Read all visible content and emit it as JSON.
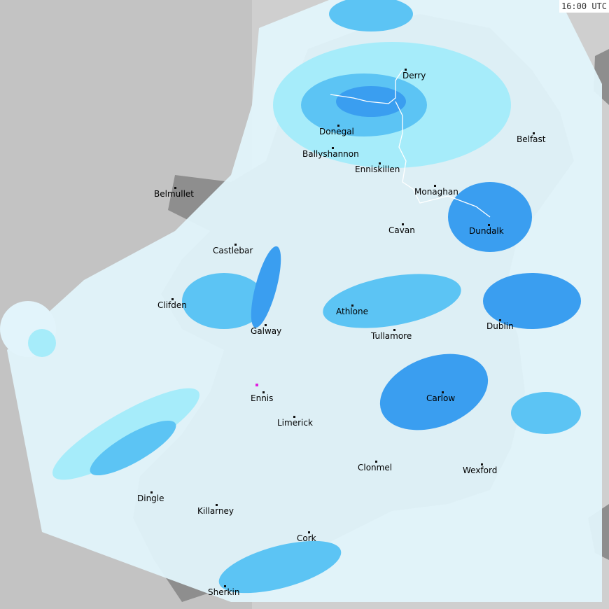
{
  "timestamp": "16:00 UTC",
  "colors": {
    "sea": "#c3c3c3",
    "land": "#8e8e8e",
    "rain_light": "#e2f4fb",
    "rain_cyan": "#a6ecfa",
    "rain_medium": "#5cc4f4",
    "rain_heavy": "#3a9ef0",
    "rain_intense": "#2c7de6",
    "border": "#ffffff",
    "coast": "#777777"
  },
  "cities": [
    {
      "name": "Derry"
    },
    {
      "name": "Donegal"
    },
    {
      "name": "Ballyshannon"
    },
    {
      "name": "Enniskillen"
    },
    {
      "name": "Belfast"
    },
    {
      "name": "Belmullet"
    },
    {
      "name": "Monaghan"
    },
    {
      "name": "Cavan"
    },
    {
      "name": "Dundalk"
    },
    {
      "name": "Castlebar"
    },
    {
      "name": "Clifden"
    },
    {
      "name": "Athlone"
    },
    {
      "name": "Dublin"
    },
    {
      "name": "Galway"
    },
    {
      "name": "Tullamore"
    },
    {
      "name": "Ennis"
    },
    {
      "name": "Carlow"
    },
    {
      "name": "Limerick"
    },
    {
      "name": "Clonmel"
    },
    {
      "name": "Wexford"
    },
    {
      "name": "Dingle"
    },
    {
      "name": "Killarney"
    },
    {
      "name": "Cork"
    },
    {
      "name": "Sherkin"
    }
  ]
}
